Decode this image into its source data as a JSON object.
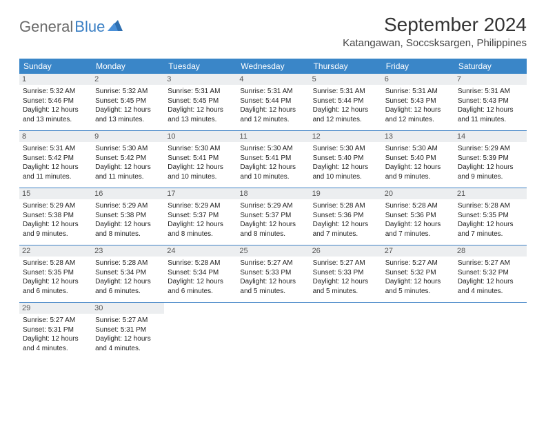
{
  "logo": {
    "word1": "General",
    "word2": "Blue"
  },
  "title": "September 2024",
  "location": "Katangawan, Soccsksargen, Philippines",
  "colors": {
    "header_bg": "#3a86c8",
    "header_text": "#ffffff",
    "daynum_bg": "#eceef0",
    "week_border": "#3a7fc4",
    "logo_gray": "#6a6a6a",
    "logo_blue": "#3a7fc4",
    "body_text": "#222222"
  },
  "daysOfWeek": [
    "Sunday",
    "Monday",
    "Tuesday",
    "Wednesday",
    "Thursday",
    "Friday",
    "Saturday"
  ],
  "weeks": [
    [
      {
        "n": "1",
        "sr": "Sunrise: 5:32 AM",
        "ss": "Sunset: 5:46 PM",
        "d1": "Daylight: 12 hours",
        "d2": "and 13 minutes."
      },
      {
        "n": "2",
        "sr": "Sunrise: 5:32 AM",
        "ss": "Sunset: 5:45 PM",
        "d1": "Daylight: 12 hours",
        "d2": "and 13 minutes."
      },
      {
        "n": "3",
        "sr": "Sunrise: 5:31 AM",
        "ss": "Sunset: 5:45 PM",
        "d1": "Daylight: 12 hours",
        "d2": "and 13 minutes."
      },
      {
        "n": "4",
        "sr": "Sunrise: 5:31 AM",
        "ss": "Sunset: 5:44 PM",
        "d1": "Daylight: 12 hours",
        "d2": "and 12 minutes."
      },
      {
        "n": "5",
        "sr": "Sunrise: 5:31 AM",
        "ss": "Sunset: 5:44 PM",
        "d1": "Daylight: 12 hours",
        "d2": "and 12 minutes."
      },
      {
        "n": "6",
        "sr": "Sunrise: 5:31 AM",
        "ss": "Sunset: 5:43 PM",
        "d1": "Daylight: 12 hours",
        "d2": "and 12 minutes."
      },
      {
        "n": "7",
        "sr": "Sunrise: 5:31 AM",
        "ss": "Sunset: 5:43 PM",
        "d1": "Daylight: 12 hours",
        "d2": "and 11 minutes."
      }
    ],
    [
      {
        "n": "8",
        "sr": "Sunrise: 5:31 AM",
        "ss": "Sunset: 5:42 PM",
        "d1": "Daylight: 12 hours",
        "d2": "and 11 minutes."
      },
      {
        "n": "9",
        "sr": "Sunrise: 5:30 AM",
        "ss": "Sunset: 5:42 PM",
        "d1": "Daylight: 12 hours",
        "d2": "and 11 minutes."
      },
      {
        "n": "10",
        "sr": "Sunrise: 5:30 AM",
        "ss": "Sunset: 5:41 PM",
        "d1": "Daylight: 12 hours",
        "d2": "and 10 minutes."
      },
      {
        "n": "11",
        "sr": "Sunrise: 5:30 AM",
        "ss": "Sunset: 5:41 PM",
        "d1": "Daylight: 12 hours",
        "d2": "and 10 minutes."
      },
      {
        "n": "12",
        "sr": "Sunrise: 5:30 AM",
        "ss": "Sunset: 5:40 PM",
        "d1": "Daylight: 12 hours",
        "d2": "and 10 minutes."
      },
      {
        "n": "13",
        "sr": "Sunrise: 5:30 AM",
        "ss": "Sunset: 5:40 PM",
        "d1": "Daylight: 12 hours",
        "d2": "and 9 minutes."
      },
      {
        "n": "14",
        "sr": "Sunrise: 5:29 AM",
        "ss": "Sunset: 5:39 PM",
        "d1": "Daylight: 12 hours",
        "d2": "and 9 minutes."
      }
    ],
    [
      {
        "n": "15",
        "sr": "Sunrise: 5:29 AM",
        "ss": "Sunset: 5:38 PM",
        "d1": "Daylight: 12 hours",
        "d2": "and 9 minutes."
      },
      {
        "n": "16",
        "sr": "Sunrise: 5:29 AM",
        "ss": "Sunset: 5:38 PM",
        "d1": "Daylight: 12 hours",
        "d2": "and 8 minutes."
      },
      {
        "n": "17",
        "sr": "Sunrise: 5:29 AM",
        "ss": "Sunset: 5:37 PM",
        "d1": "Daylight: 12 hours",
        "d2": "and 8 minutes."
      },
      {
        "n": "18",
        "sr": "Sunrise: 5:29 AM",
        "ss": "Sunset: 5:37 PM",
        "d1": "Daylight: 12 hours",
        "d2": "and 8 minutes."
      },
      {
        "n": "19",
        "sr": "Sunrise: 5:28 AM",
        "ss": "Sunset: 5:36 PM",
        "d1": "Daylight: 12 hours",
        "d2": "and 7 minutes."
      },
      {
        "n": "20",
        "sr": "Sunrise: 5:28 AM",
        "ss": "Sunset: 5:36 PM",
        "d1": "Daylight: 12 hours",
        "d2": "and 7 minutes."
      },
      {
        "n": "21",
        "sr": "Sunrise: 5:28 AM",
        "ss": "Sunset: 5:35 PM",
        "d1": "Daylight: 12 hours",
        "d2": "and 7 minutes."
      }
    ],
    [
      {
        "n": "22",
        "sr": "Sunrise: 5:28 AM",
        "ss": "Sunset: 5:35 PM",
        "d1": "Daylight: 12 hours",
        "d2": "and 6 minutes."
      },
      {
        "n": "23",
        "sr": "Sunrise: 5:28 AM",
        "ss": "Sunset: 5:34 PM",
        "d1": "Daylight: 12 hours",
        "d2": "and 6 minutes."
      },
      {
        "n": "24",
        "sr": "Sunrise: 5:28 AM",
        "ss": "Sunset: 5:34 PM",
        "d1": "Daylight: 12 hours",
        "d2": "and 6 minutes."
      },
      {
        "n": "25",
        "sr": "Sunrise: 5:27 AM",
        "ss": "Sunset: 5:33 PM",
        "d1": "Daylight: 12 hours",
        "d2": "and 5 minutes."
      },
      {
        "n": "26",
        "sr": "Sunrise: 5:27 AM",
        "ss": "Sunset: 5:33 PM",
        "d1": "Daylight: 12 hours",
        "d2": "and 5 minutes."
      },
      {
        "n": "27",
        "sr": "Sunrise: 5:27 AM",
        "ss": "Sunset: 5:32 PM",
        "d1": "Daylight: 12 hours",
        "d2": "and 5 minutes."
      },
      {
        "n": "28",
        "sr": "Sunrise: 5:27 AM",
        "ss": "Sunset: 5:32 PM",
        "d1": "Daylight: 12 hours",
        "d2": "and 4 minutes."
      }
    ],
    [
      {
        "n": "29",
        "sr": "Sunrise: 5:27 AM",
        "ss": "Sunset: 5:31 PM",
        "d1": "Daylight: 12 hours",
        "d2": "and 4 minutes."
      },
      {
        "n": "30",
        "sr": "Sunrise: 5:27 AM",
        "ss": "Sunset: 5:31 PM",
        "d1": "Daylight: 12 hours",
        "d2": "and 4 minutes."
      },
      null,
      null,
      null,
      null,
      null
    ]
  ]
}
